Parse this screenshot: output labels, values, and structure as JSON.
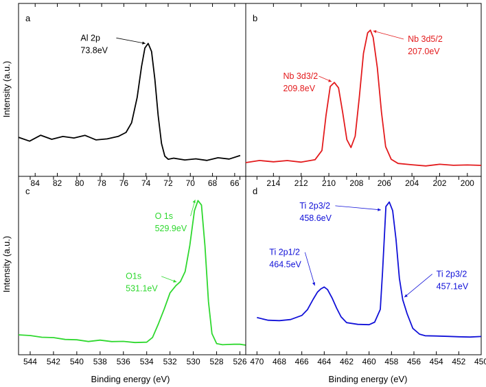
{
  "figure": {
    "y_label": "Intensity (a.u.)",
    "x_label": "Binding energy (eV)"
  },
  "chart_data": [
    {
      "panel": "a",
      "type": "line",
      "color": "#000000",
      "xlabel": "",
      "ylabel": "Intensity (a.u.)",
      "xlim": [
        85.5,
        65
      ],
      "ylim": [
        0,
        100
      ],
      "xticks": [
        84,
        82,
        80,
        78,
        76,
        74,
        72,
        70,
        68,
        66
      ],
      "x": [
        85.5,
        84.5,
        83.5,
        82.5,
        81.5,
        80.5,
        79.5,
        78.5,
        77.5,
        76.5,
        75.8,
        75.3,
        74.8,
        74.4,
        74.1,
        73.8,
        73.5,
        73.2,
        72.9,
        72.6,
        72.3,
        72.0,
        71.5,
        70.5,
        69.5,
        68.5,
        67.5,
        66.5,
        65.5
      ],
      "y": [
        23,
        20,
        24,
        21,
        23,
        22,
        24,
        21,
        22,
        24,
        27,
        34,
        52,
        74,
        87,
        90,
        84,
        64,
        38,
        18,
        9,
        7,
        8,
        7,
        8,
        7,
        9,
        8,
        10
      ],
      "annotations": [
        {
          "lines": [
            "Al 2p",
            "73.8eV"
          ],
          "x": 73.8,
          "y": 90,
          "text_x": 79.9,
          "text_y": 92
        }
      ]
    },
    {
      "panel": "b",
      "type": "line",
      "color": "#e31a1c",
      "xlabel": "",
      "ylabel": "",
      "xlim": [
        216,
        199
      ],
      "ylim": [
        0,
        100
      ],
      "xticks": [
        214,
        212,
        210,
        208,
        206,
        204,
        202,
        200
      ],
      "x": [
        216,
        215,
        214,
        213,
        212,
        211,
        210.5,
        210.2,
        209.9,
        209.6,
        209.3,
        209.0,
        208.7,
        208.4,
        208.1,
        207.8,
        207.5,
        207.2,
        207.0,
        206.8,
        206.5,
        206.2,
        205.9,
        205.5,
        205,
        204,
        203,
        202,
        201,
        200,
        199
      ],
      "y": [
        3,
        4,
        3,
        4,
        3,
        5,
        12,
        38,
        59,
        62,
        58,
        40,
        20,
        14,
        22,
        50,
        82,
        97,
        99,
        94,
        72,
        40,
        15,
        6,
        3,
        2,
        1,
        2,
        1,
        1,
        1
      ],
      "annotations": [
        {
          "lines": [
            "Nb 3d3/2",
            "209.8eV"
          ],
          "x": 209.6,
          "y": 62,
          "text_x": 213.3,
          "text_y": 64
        },
        {
          "lines": [
            "Nb 3d5/2",
            "207.0eV"
          ],
          "x": 207.0,
          "y": 99,
          "text_x": 204.3,
          "text_y": 91
        }
      ]
    },
    {
      "panel": "c",
      "type": "line",
      "color": "#2ed82e",
      "xlabel": "Binding energy (eV)",
      "ylabel": "Intensity (a.u.)",
      "xlim": [
        545,
        525.5
      ],
      "ylim": [
        0,
        100
      ],
      "xticks": [
        544,
        542,
        540,
        538,
        536,
        534,
        532,
        530,
        528,
        526
      ],
      "x": [
        545,
        544,
        543,
        542,
        541,
        540,
        539,
        538,
        537,
        536,
        535,
        534,
        533.5,
        533,
        532.5,
        532,
        531.5,
        531.1,
        530.7,
        530.3,
        529.9,
        529.6,
        529.3,
        529.0,
        528.7,
        528.4,
        528.0,
        527.5,
        527,
        526.5,
        526,
        525.5
      ],
      "y": [
        7,
        6,
        5,
        5,
        4,
        4,
        3,
        4,
        3,
        3,
        2,
        2,
        5,
        14,
        24,
        35,
        40,
        43,
        50,
        68,
        92,
        99,
        96,
        68,
        30,
        8,
        1,
        0,
        0,
        0,
        0,
        0
      ],
      "annotations": [
        {
          "lines": [
            "O 1s",
            "529.9eV"
          ],
          "x": 529.6,
          "y": 99,
          "text_x": 533.3,
          "text_y": 86
        },
        {
          "lines": [
            "O1s",
            "531.1eV"
          ],
          "x": 531.2,
          "y": 43,
          "text_x": 535.8,
          "text_y": 45
        }
      ]
    },
    {
      "panel": "d",
      "type": "line",
      "color": "#1010d8",
      "xlabel": "Binding energy (eV)",
      "ylabel": "",
      "xlim": [
        471,
        450
      ],
      "ylim": [
        0,
        100
      ],
      "xticks": [
        470,
        468,
        466,
        464,
        462,
        460,
        458,
        456,
        454,
        452,
        450
      ],
      "x": [
        470,
        469,
        468,
        467,
        466,
        465.5,
        465,
        464.6,
        464.3,
        464.0,
        463.7,
        463.3,
        462.9,
        462.5,
        462,
        461,
        460,
        459.5,
        459.0,
        458.8,
        458.5,
        458.2,
        457.9,
        457.6,
        457.3,
        457.0,
        456.6,
        456.1,
        455.5,
        455,
        454,
        453,
        452,
        451,
        450
      ],
      "y": [
        18,
        16,
        16,
        17,
        20,
        24,
        31,
        36,
        38,
        39,
        37,
        31,
        24,
        18,
        14,
        13,
        13,
        15,
        24,
        50,
        95,
        98,
        92,
        72,
        45,
        30,
        20,
        10,
        6,
        5,
        5,
        5,
        5,
        5,
        5
      ],
      "annotations": [
        {
          "lines": [
            "Ti 2p3/2",
            "458.6eV"
          ],
          "x": 458.7,
          "y": 92,
          "text_x": 466.2,
          "text_y": 93
        },
        {
          "lines": [
            "Ti 2p1/2",
            "464.5eV"
          ],
          "x": 464.6,
          "y": 40,
          "text_x": 468.9,
          "text_y": 61
        },
        {
          "lines": [
            "Ti 2p3/2",
            "457.1eV"
          ],
          "x": 457.1,
          "y": 32,
          "text_x": 454.0,
          "text_y": 46
        }
      ]
    }
  ]
}
